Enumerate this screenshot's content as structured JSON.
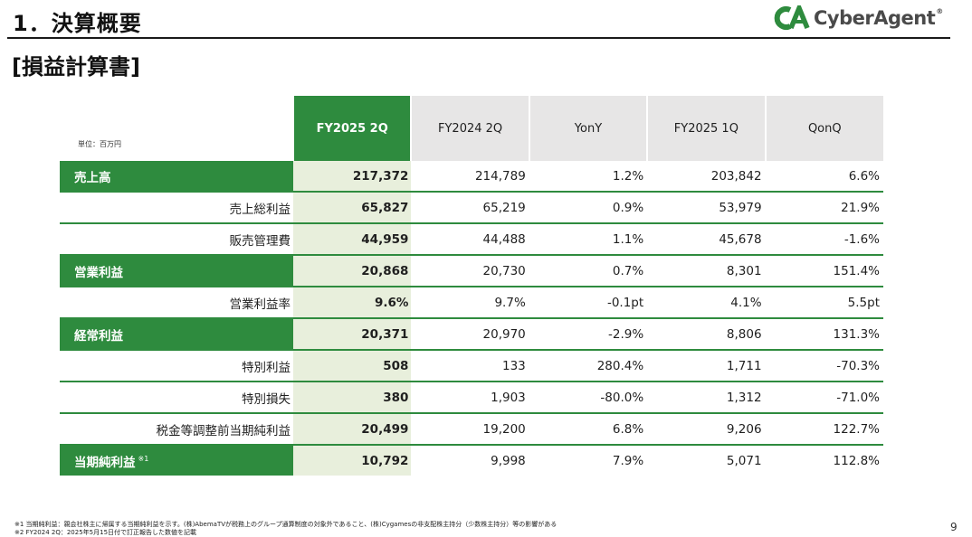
{
  "header": {
    "title": "1．決算概要",
    "logo_text": "CyberAgent",
    "logo_reg": "®",
    "brand_color": "#2e8b3e"
  },
  "subtitle": "[損益計算書]",
  "table": {
    "unit_label": "単位：百万円",
    "columns": [
      "FY2025 2Q",
      "FY2024 2Q",
      "YonY",
      "FY2025 1Q",
      "QonQ"
    ],
    "highlight_color": "#2e8b3e",
    "current_column_bg": "#e8efdc",
    "rows": [
      {
        "label": "売上高",
        "note": "",
        "highlight": true,
        "values": [
          "217,372",
          "214,789",
          "1.2%",
          "203,842",
          "6.6%"
        ]
      },
      {
        "label": "売上総利益",
        "note": "",
        "highlight": false,
        "values": [
          "65,827",
          "65,219",
          "0.9%",
          "53,979",
          "21.9%"
        ]
      },
      {
        "label": "販売管理費",
        "note": "",
        "highlight": false,
        "values": [
          "44,959",
          "44,488",
          "1.1%",
          "45,678",
          "-1.6%"
        ]
      },
      {
        "label": "営業利益",
        "note": "",
        "highlight": true,
        "values": [
          "20,868",
          "20,730",
          "0.7%",
          "8,301",
          "151.4%"
        ]
      },
      {
        "label": "営業利益率",
        "note": "",
        "highlight": false,
        "values": [
          "9.6%",
          "9.7%",
          "-0.1pt",
          "4.1%",
          "5.5pt"
        ]
      },
      {
        "label": "経常利益",
        "note": "",
        "highlight": true,
        "values": [
          "20,371",
          "20,970",
          "-2.9%",
          "8,806",
          "131.3%"
        ]
      },
      {
        "label": "特別利益",
        "note": "",
        "highlight": false,
        "values": [
          "508",
          "133",
          "280.4%",
          "1,711",
          "-70.3%"
        ]
      },
      {
        "label": "特別損失",
        "note": "",
        "highlight": false,
        "values": [
          "380",
          "1,903",
          "-80.0%",
          "1,312",
          "-71.0%"
        ]
      },
      {
        "label": "税金等調整前当期純利益",
        "note": "",
        "highlight": false,
        "values": [
          "20,499",
          "19,200",
          "6.8%",
          "9,206",
          "122.7%"
        ]
      },
      {
        "label": "当期純利益",
        "note": "※1",
        "highlight": true,
        "values": [
          "10,792",
          "9,998",
          "7.9%",
          "5,071",
          "112.8%"
        ]
      }
    ]
  },
  "footnotes": [
    "※1  当期純利益：親会社株主に帰属する当期純利益を示す。(株)AbemaTVが税務上のグループ通算制度の対象外であること、(株)Cygamesの非支配株主持分（少数株主持分）等の影響がある",
    "※2  FY2024 2Q：2025年5月15日付で訂正報告した数値を記載"
  ],
  "page_number": "9"
}
